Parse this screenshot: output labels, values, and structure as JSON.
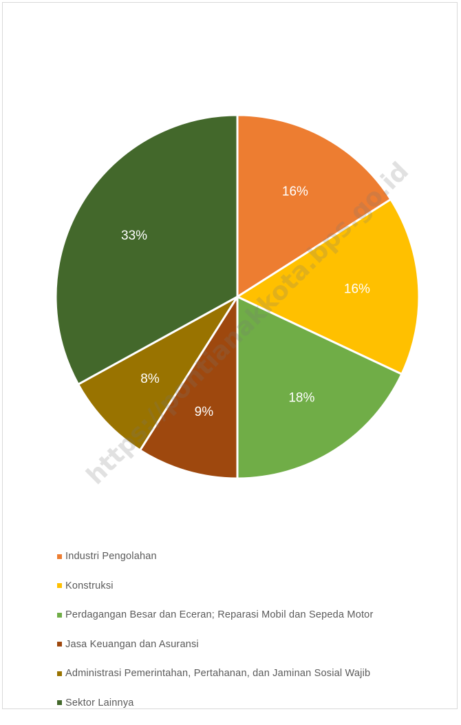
{
  "chart_data": {
    "type": "pie",
    "title": "",
    "slices": [
      {
        "label": "Industri Pengolahan",
        "value": 16,
        "value_label": "16%",
        "color": "#ED7D31"
      },
      {
        "label": "Konstruksi",
        "value": 16,
        "value_label": "16%",
        "color": "#FFC000"
      },
      {
        "label": "Perdagangan Besar dan Eceran; Reparasi Mobil dan Sepeda Motor",
        "value": 18,
        "value_label": "18%",
        "color": "#70AD47"
      },
      {
        "label": "Jasa Keuangan dan Asuransi",
        "value": 9,
        "value_label": "9%",
        "color": "#9E480E"
      },
      {
        "label": "Administrasi Pemerintahan, Pertahanan, dan Jaminan Sosial Wajib",
        "value": 8,
        "value_label": "8%",
        "color": "#997300"
      },
      {
        "label": "Sektor Lainnya",
        "value": 33,
        "value_label": "33%",
        "color": "#43682B"
      }
    ],
    "legend_position": "bottom",
    "start_angle": "12 o'clock, clockwise"
  },
  "watermark": "https://pontianakkota.bps.go.id"
}
